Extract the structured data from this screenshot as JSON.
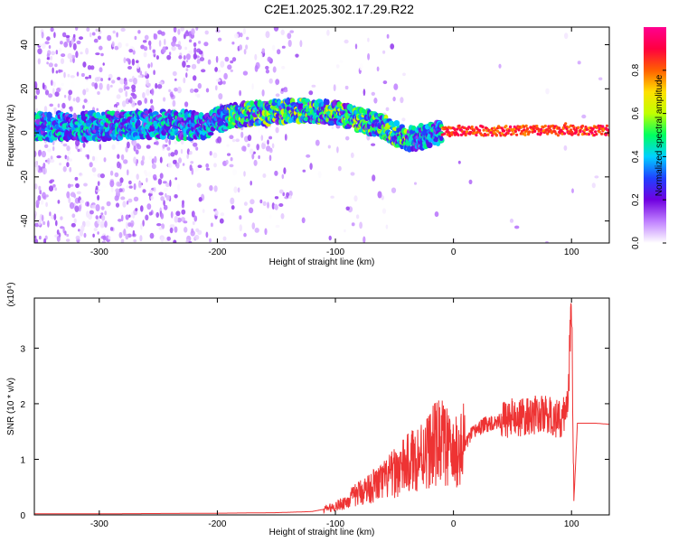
{
  "title": "C2E1.2025.302.17.29.R22",
  "chart_data": [
    {
      "type": "heatmap",
      "xlabel": "Height of straight line (km)",
      "ylabel": "Frequency (Hz)",
      "xlim": [
        -355,
        132
      ],
      "ylim": [
        -50,
        48
      ],
      "x_ticks": [
        -300,
        -200,
        -100,
        0,
        100
      ],
      "y_ticks": [
        -40,
        -20,
        0,
        20,
        40
      ],
      "colorbar": {
        "label": "Normalized spectral amplitude",
        "range": [
          0,
          1
        ],
        "ticks": [
          0.0,
          0.2,
          0.4,
          0.6,
          0.8
        ],
        "tick_labels": [
          "0.0",
          "0.2",
          "0.4",
          "0.6",
          "0.8"
        ],
        "colors": [
          "#ffffff",
          "#c080ff",
          "#7000e0",
          "#2040ff",
          "#00d0ff",
          "#00ff60",
          "#c0ff00",
          "#ffe000",
          "#ff6000",
          "#ff0040",
          "#ff0090"
        ]
      },
      "features": [
        {
          "name": "ridge",
          "x": [
            -345,
            -300,
            -250,
            -210,
            -200,
            -180,
            -160,
            -140,
            -120,
            -100,
            -80,
            -60,
            -50,
            -40,
            -30,
            -20,
            -10,
            0,
            20,
            50,
            90,
            95,
            100,
            130
          ],
          "y": [
            3,
            3,
            4,
            3,
            6,
            8,
            9,
            10,
            10,
            9,
            6,
            3,
            0,
            -3,
            -2,
            -1,
            0,
            1,
            1,
            1,
            1,
            2,
            1,
            1
          ]
        }
      ]
    },
    {
      "type": "line",
      "xlabel": "Height of straight line (km)",
      "ylabel": "SNR (10 * v/v)",
      "y_multiplier": "(x10⁴)",
      "xlim": [
        -355,
        132
      ],
      "ylim": [
        0,
        3.9
      ],
      "x_ticks": [
        -300,
        -200,
        -100,
        0,
        100
      ],
      "y_ticks": [
        0,
        1,
        2,
        3
      ],
      "color": "#ee3333",
      "series": [
        {
          "x": [
            -355,
            -300,
            -200,
            -150,
            -120,
            -110,
            -100,
            -90,
            -80,
            -70,
            -60,
            -50,
            -40,
            -30,
            -20,
            -10,
            0,
            10,
            20,
            30,
            40,
            50,
            60,
            70,
            80,
            90,
            95,
            98,
            100,
            102,
            105,
            110,
            120,
            132
          ],
          "y": [
            0.02,
            0.02,
            0.03,
            0.04,
            0.06,
            0.1,
            0.15,
            0.25,
            0.4,
            0.5,
            0.6,
            0.75,
            0.9,
            1.05,
            1.2,
            1.35,
            1.05,
            1.3,
            1.55,
            1.65,
            1.7,
            1.75,
            1.75,
            1.8,
            1.8,
            1.7,
            1.85,
            2.3,
            3.8,
            0.25,
            1.65,
            1.65,
            1.65,
            1.63
          ]
        }
      ]
    }
  ]
}
